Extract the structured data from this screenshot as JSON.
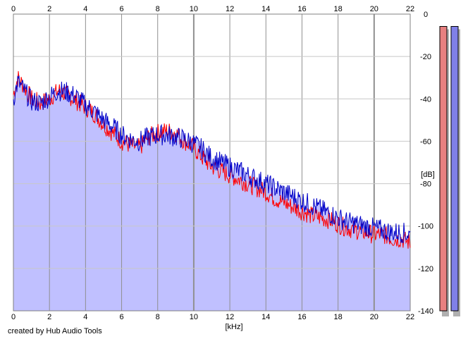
{
  "chart_data": {
    "type": "area",
    "xlabel": "[kHz]",
    "ylabel": "[dB]",
    "xlim": [
      0,
      22
    ],
    "ylim": [
      -140,
      0
    ],
    "x_ticks": [
      0,
      2,
      4,
      6,
      8,
      10,
      12,
      14,
      16,
      18,
      20,
      22
    ],
    "y_ticks": [
      0,
      -20,
      -40,
      -60,
      -80,
      -100,
      -120,
      -140
    ],
    "grid": true,
    "series": [
      {
        "color": "#ff0000",
        "x": [
          0,
          0.25,
          0.5,
          1,
          1.5,
          2,
          2.5,
          3,
          3.5,
          4,
          4.5,
          5,
          5.5,
          6,
          6.5,
          7,
          7.5,
          8,
          8.5,
          9,
          9.5,
          10,
          10.5,
          11,
          11.5,
          12,
          12.5,
          13,
          13.5,
          14,
          14.5,
          15,
          15.5,
          16,
          16.5,
          17,
          17.5,
          18,
          18.5,
          19,
          19.5,
          20,
          20.5,
          21,
          21.5,
          22
        ],
        "values": [
          -38,
          -30,
          -33,
          -40,
          -42,
          -40,
          -36,
          -38,
          -41,
          -44,
          -47,
          -52,
          -56,
          -60,
          -62,
          -63,
          -58,
          -56,
          -55,
          -56,
          -60,
          -63,
          -68,
          -72,
          -74,
          -76,
          -78,
          -80,
          -82,
          -84,
          -87,
          -89,
          -91,
          -93,
          -95,
          -96,
          -97,
          -99,
          -101,
          -102,
          -103,
          -104,
          -104,
          -106,
          -106,
          -108
        ]
      },
      {
        "color": "#0000c8",
        "x": [
          0,
          0.25,
          0.5,
          1,
          1.5,
          2,
          2.5,
          3,
          3.5,
          4,
          4.5,
          5,
          5.5,
          6,
          6.5,
          7,
          7.5,
          8,
          8.5,
          9,
          9.5,
          10,
          10.5,
          11,
          11.5,
          12,
          12.5,
          13,
          13.5,
          14,
          14.5,
          15,
          15.5,
          16,
          16.5,
          17,
          17.5,
          18,
          18.5,
          19,
          19.5,
          20,
          20.5,
          21,
          21.5,
          22
        ],
        "values": [
          -40,
          -32,
          -35,
          -41,
          -42,
          -39,
          -36,
          -37,
          -39,
          -43,
          -46,
          -50,
          -53,
          -57,
          -59,
          -60,
          -58,
          -57,
          -57,
          -58,
          -59,
          -61,
          -64,
          -68,
          -70,
          -72,
          -74,
          -76,
          -78,
          -80,
          -82,
          -84,
          -86,
          -88,
          -90,
          -92,
          -94,
          -96,
          -98,
          -99,
          -100,
          -101,
          -102,
          -103,
          -103,
          -104
        ]
      }
    ],
    "fill_color": "#c0c0ff",
    "level_meters": [
      {
        "color": "#e88080",
        "level": -0.5
      },
      {
        "color": "#8080e8",
        "level": -0.5
      }
    ]
  },
  "credit": "created by Hub Audio Tools"
}
